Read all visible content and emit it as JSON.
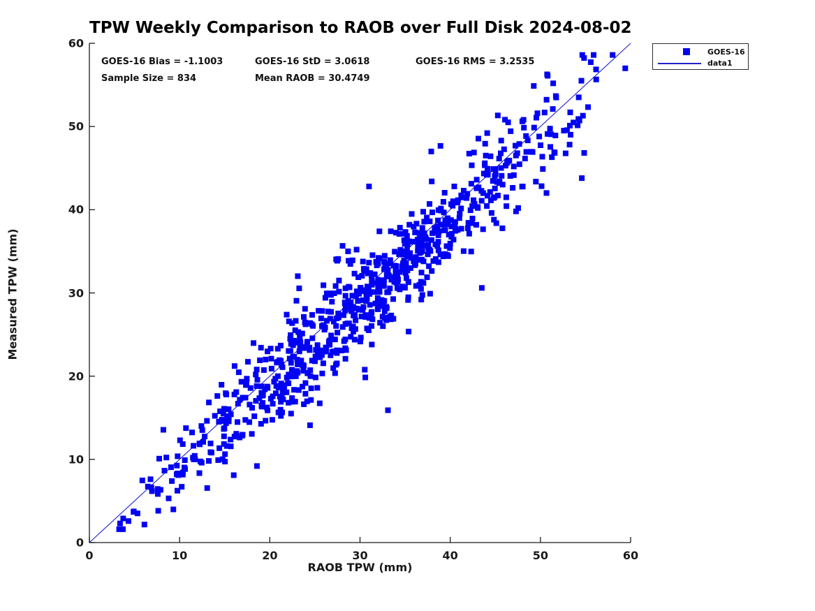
{
  "chart_data": {
    "type": "scatter",
    "title": "TPW Weekly Comparison to RAOB over Full Disk 2024-08-02",
    "xlabel": "RAOB TPW (mm)",
    "ylabel": "Measured TPW (mm)",
    "xlim": [
      0,
      60
    ],
    "ylim": [
      0,
      60
    ],
    "xticks": [
      0,
      10,
      20,
      30,
      40,
      50,
      60
    ],
    "yticks": [
      0,
      10,
      20,
      30,
      40,
      50,
      60
    ],
    "grid": false,
    "legend_position": "top-right-outside",
    "legend": [
      {
        "label": "GOES-16",
        "type": "marker",
        "color": "#0202f2"
      },
      {
        "label": "data1",
        "type": "line",
        "color": "#2020cc"
      }
    ],
    "marker_color": "#0202f2",
    "line_color": "#2020cc",
    "axis_color": "#1a1a1a",
    "identity_line": {
      "x": [
        0,
        60
      ],
      "y": [
        0,
        60
      ]
    },
    "stats": {
      "bias": "GOES-16 Bias = -1.1003",
      "std": "GOES-16 StD = 3.0618",
      "rms": "GOES-16 RMS = 3.2535",
      "sample": "Sample Size = 834",
      "mean_raob": "Mean RAOB = 30.4749"
    },
    "stats_values": {
      "bias": -1.1003,
      "std": 3.0618,
      "rms": 3.2535,
      "sample_size": 834,
      "mean_raob": 30.4749
    },
    "points_explicit": [
      [
        33.1,
        15.9
      ],
      [
        31.0,
        42.8
      ],
      [
        3.4,
        2.3
      ],
      [
        59.4,
        57.0
      ],
      [
        37.9,
        47.0
      ],
      [
        43.5,
        30.6
      ],
      [
        16.0,
        8.1
      ],
      [
        50.8,
        56.1
      ]
    ],
    "scatter_model": {
      "n_total": 834,
      "relation": "y = x + bias + noise",
      "bias": -1.1003,
      "noise_std": 3.0618,
      "x_range": [
        2.8,
        59.6
      ],
      "y_clamp": [
        1.6,
        58.6
      ],
      "seed": 7
    }
  }
}
